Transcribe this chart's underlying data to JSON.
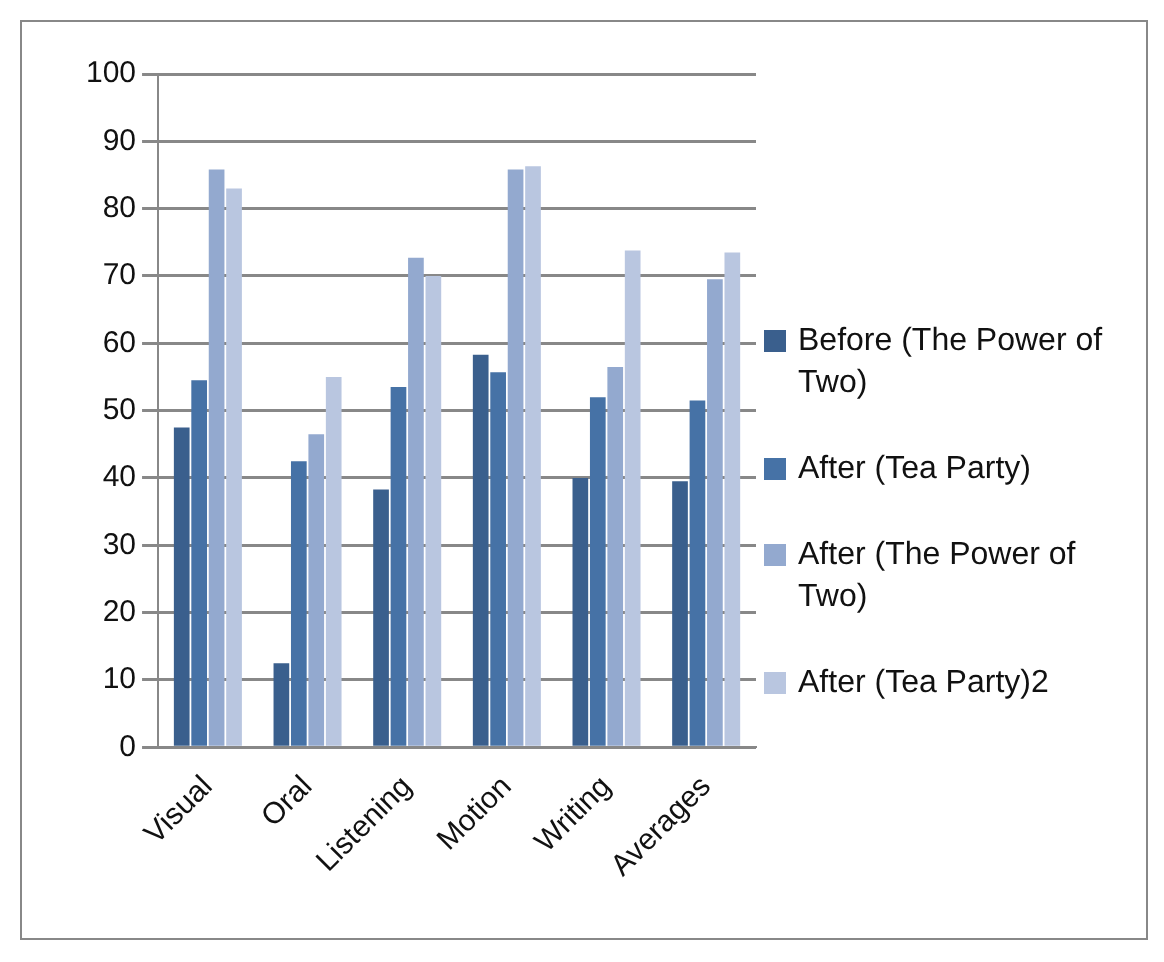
{
  "chart_data": {
    "type": "bar",
    "categories": [
      "Visual",
      "Oral",
      "Listening",
      "Motion",
      "Writing",
      "Averages"
    ],
    "series": [
      {
        "name": "Before (The Power of Two)",
        "color": "#3a5f8d",
        "values": [
          47.5,
          12.5,
          38.3,
          58.3,
          40,
          39.5
        ]
      },
      {
        "name": "After (Tea Party)",
        "color": "#4672a6",
        "values": [
          54.5,
          42.5,
          53.5,
          55.7,
          52,
          51.5
        ]
      },
      {
        "name": "After (The Power of Two)",
        "color": "#93a9cf",
        "values": [
          85.8,
          46.5,
          72.7,
          85.8,
          56.5,
          69.5
        ]
      },
      {
        "name": "After (Tea Party)2",
        "color": "#b9c6e0",
        "values": [
          83,
          55,
          70,
          86.3,
          73.8,
          73.5
        ]
      }
    ],
    "ylim": [
      0,
      100
    ],
    "yticks": [
      0,
      10,
      20,
      30,
      40,
      50,
      60,
      70,
      80,
      90,
      100
    ],
    "grid": "y",
    "legend": "right"
  }
}
